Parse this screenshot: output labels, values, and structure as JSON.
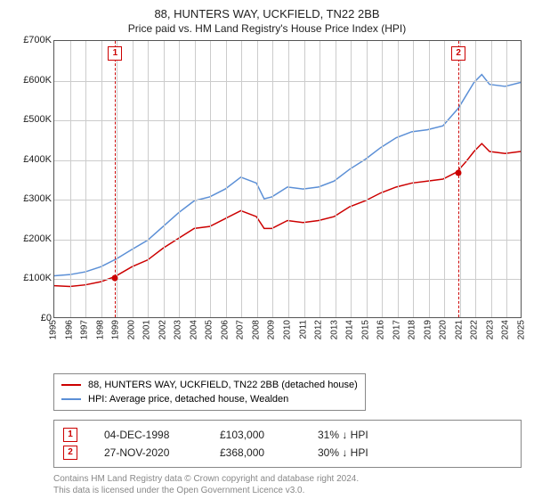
{
  "title": {
    "main": "88, HUNTERS WAY, UCKFIELD, TN22 2BB",
    "sub": "Price paid vs. HM Land Registry's House Price Index (HPI)",
    "fontsize_main": 13,
    "fontsize_sub": 12,
    "color": "#222222"
  },
  "chart": {
    "type": "line",
    "background_color": "#ffffff",
    "border_color": "#555555",
    "grid_color": "#cccccc",
    "x": {
      "years": [
        1995,
        1996,
        1997,
        1998,
        1999,
        2000,
        2001,
        2002,
        2003,
        2004,
        2005,
        2006,
        2007,
        2008,
        2009,
        2010,
        2011,
        2012,
        2013,
        2014,
        2015,
        2016,
        2017,
        2018,
        2019,
        2020,
        2021,
        2022,
        2023,
        2024,
        2025
      ],
      "label_fontsize": 10,
      "label_rotation": -90
    },
    "y": {
      "min": 0,
      "max": 700000,
      "tick_step": 100000,
      "tick_labels": [
        "£0",
        "£100K",
        "£200K",
        "£300K",
        "£400K",
        "£500K",
        "£600K",
        "£700K"
      ],
      "label_fontsize": 11
    },
    "series": [
      {
        "name": "price_paid",
        "label": "88, HUNTERS WAY, UCKFIELD, TN22 2BB (detached house)",
        "color": "#cc0000",
        "line_width": 1.5,
        "points": [
          [
            1995,
            80000
          ],
          [
            1996,
            78000
          ],
          [
            1997,
            82000
          ],
          [
            1998,
            90000
          ],
          [
            1998.9,
            103000
          ],
          [
            2000,
            128000
          ],
          [
            2001,
            145000
          ],
          [
            2002,
            175000
          ],
          [
            2003,
            200000
          ],
          [
            2004,
            225000
          ],
          [
            2005,
            230000
          ],
          [
            2006,
            250000
          ],
          [
            2007,
            270000
          ],
          [
            2008,
            255000
          ],
          [
            2008.5,
            225000
          ],
          [
            2009,
            225000
          ],
          [
            2010,
            245000
          ],
          [
            2011,
            240000
          ],
          [
            2012,
            245000
          ],
          [
            2013,
            255000
          ],
          [
            2014,
            280000
          ],
          [
            2015,
            295000
          ],
          [
            2016,
            315000
          ],
          [
            2017,
            330000
          ],
          [
            2018,
            340000
          ],
          [
            2019,
            345000
          ],
          [
            2020,
            350000
          ],
          [
            2020.9,
            368000
          ],
          [
            2021.5,
            395000
          ],
          [
            2022,
            420000
          ],
          [
            2022.5,
            440000
          ],
          [
            2023,
            420000
          ],
          [
            2024,
            415000
          ],
          [
            2025,
            420000
          ]
        ]
      },
      {
        "name": "hpi",
        "label": "HPI: Average price, detached house, Wealden",
        "color": "#5b8fd6",
        "line_width": 1.5,
        "points": [
          [
            1995,
            105000
          ],
          [
            1996,
            108000
          ],
          [
            1997,
            115000
          ],
          [
            1998,
            128000
          ],
          [
            1999,
            148000
          ],
          [
            2000,
            172000
          ],
          [
            2001,
            195000
          ],
          [
            2002,
            230000
          ],
          [
            2003,
            265000
          ],
          [
            2004,
            295000
          ],
          [
            2005,
            305000
          ],
          [
            2006,
            325000
          ],
          [
            2007,
            355000
          ],
          [
            2008,
            340000
          ],
          [
            2008.5,
            300000
          ],
          [
            2009,
            305000
          ],
          [
            2010,
            330000
          ],
          [
            2011,
            325000
          ],
          [
            2012,
            330000
          ],
          [
            2013,
            345000
          ],
          [
            2014,
            375000
          ],
          [
            2015,
            400000
          ],
          [
            2016,
            430000
          ],
          [
            2017,
            455000
          ],
          [
            2018,
            470000
          ],
          [
            2019,
            475000
          ],
          [
            2020,
            485000
          ],
          [
            2021,
            530000
          ],
          [
            2022,
            595000
          ],
          [
            2022.5,
            615000
          ],
          [
            2023,
            590000
          ],
          [
            2024,
            585000
          ],
          [
            2025,
            595000
          ]
        ]
      }
    ],
    "events": [
      {
        "id": "1",
        "year": 1998.9,
        "price": 103000,
        "date_label": "04-DEC-1998",
        "price_label": "£103,000",
        "delta_label": "31% ↓ HPI"
      },
      {
        "id": "2",
        "year": 2020.9,
        "price": 368000,
        "date_label": "27-NOV-2020",
        "price_label": "£368,000",
        "delta_label": "30% ↓ HPI"
      }
    ],
    "event_marker_color": "#cc0000",
    "event_line_style": "dashed"
  },
  "legend": {
    "border_color": "#888888",
    "fontsize": 11
  },
  "footer": {
    "line1": "Contains HM Land Registry data © Crown copyright and database right 2024.",
    "line2": "This data is licensed under the Open Government Licence v3.0.",
    "color": "#888888",
    "fontsize": 10
  }
}
